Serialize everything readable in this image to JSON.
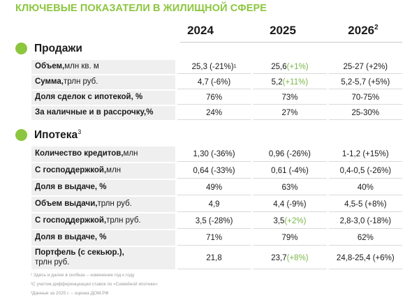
{
  "title": "КЛЮЧЕВЫЕ ПОКАЗАТЕЛИ В ЖИЛИЩНОЙ СФЕРЕ",
  "years": [
    {
      "label": "2024",
      "sup": ""
    },
    {
      "label": "2025",
      "sup": ""
    },
    {
      "label": "2026",
      "sup": "2"
    }
  ],
  "accent_color": "#8cc63f",
  "positive_change_color": "#7ab648",
  "sections": {
    "sales": {
      "label": "Продажи",
      "sup": "",
      "rows": [
        {
          "name": "Объем,",
          "unit": " млн кв. м",
          "v2024": "25,3 (-21%)",
          "v2024_sup": "1",
          "v2025": "25,6 ",
          "v2025_change": "(+1%)",
          "v2026": "25-27 (+2%)"
        },
        {
          "name": "Сумма,",
          "unit": " трлн руб.",
          "v2024": "4,7 (-6%)",
          "v2024_sup": "",
          "v2025": "5,2 ",
          "v2025_change": "(+11%)",
          "v2026": "5,2-5,7 (+5%)"
        },
        {
          "name": "Доля сделок с ипотекой, %",
          "unit": "",
          "v2024": "76%",
          "v2024_sup": "",
          "v2025": "73%",
          "v2025_change": "",
          "v2026": "70-75%"
        },
        {
          "name": "За наличные и в рассрочку,%",
          "unit": "",
          "v2024": "24%",
          "v2024_sup": "",
          "v2025": "27%",
          "v2025_change": "",
          "v2026": "25-30%"
        }
      ]
    },
    "mortgage": {
      "label": "Ипотека",
      "sup": "3",
      "rows": [
        {
          "name": "Количество кредитов,",
          "unit": " млн",
          "v2024": "1,30 (-36%)",
          "v2025": "0,96 (-26%)",
          "v2025_change": "",
          "v2026": "1-1,2 (+15%)"
        },
        {
          "name": "С господдержкой,",
          "unit": " млн",
          "v2024": "0,64 (-33%)",
          "v2025": "0,61 (-4%)",
          "v2025_change": "",
          "v2026": "0,4-0,5 (-26%)"
        },
        {
          "name": "Доля в выдаче, %",
          "unit": "",
          "v2024": "49%",
          "v2025": "63%",
          "v2025_change": "",
          "v2026": "40%"
        },
        {
          "name": "Объем выдачи,",
          "unit": " трлн руб.",
          "v2024": "4,9",
          "v2025": "4,4 (-9%)",
          "v2025_change": "",
          "v2026": "4,5-5 (+8%)"
        },
        {
          "name": "С господдержкой,",
          "unit": " трлн руб.",
          "v2024": "3,5 (-28%)",
          "v2025": "3,5 ",
          "v2025_change": "(+2%)",
          "v2026": "2,8-3,0 (-18%)"
        },
        {
          "name": "Доля в выдаче, %",
          "unit": "",
          "v2024": "71%",
          "v2025": "79%",
          "v2025_change": "",
          "v2026": "62%"
        },
        {
          "name": "Портфель (с секьюр.),",
          "unit": "трлн руб.",
          "v2024": "21,8",
          "v2025": "23,7 ",
          "v2025_change": "(+8%)",
          "v2026": "24,8-25,4 (+6%)"
        }
      ]
    }
  },
  "footnotes": [
    "¹ Здесь и далее в скобках – изменение год к году",
    "²С учетом дифференциации ставок по «Семейной ипотеке»",
    "³Данные за 2025 г. – оценка ДОМ.РФ"
  ]
}
